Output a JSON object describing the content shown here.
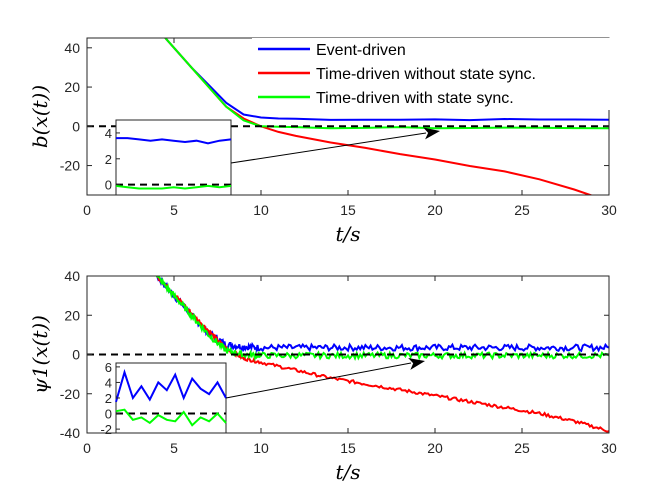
{
  "chart_data": [
    {
      "type": "line",
      "ylabel": "b(x(t))",
      "xlabel": "t/s",
      "xlim": [
        0,
        30
      ],
      "ylim": [
        -35,
        45
      ],
      "xticks": [
        0,
        5,
        10,
        15,
        20,
        25,
        30
      ],
      "yticks": [
        -20,
        0,
        20,
        40
      ],
      "grid": false,
      "legend": {
        "placement": "top-center",
        "entries": [
          "Event-driven",
          "Time-driven without state sync.",
          "Time-driven with state sync."
        ]
      },
      "series": [
        {
          "name": "Event-driven",
          "color": "#0000ff",
          "x": [
            4.5,
            5,
            6,
            7,
            8,
            9,
            10,
            11,
            12,
            14,
            16,
            18,
            20,
            22,
            24,
            26,
            28,
            30
          ],
          "y": [
            45,
            40,
            30,
            21,
            12,
            6,
            4.5,
            4,
            3.8,
            3.5,
            3.5,
            3.4,
            3.5,
            3.4,
            3.5,
            3.4,
            3.5,
            3.5
          ]
        },
        {
          "name": "Time-driven without state sync.",
          "color": "#ff0000",
          "x": [
            4.5,
            5,
            6,
            7,
            8,
            9,
            10,
            11,
            12,
            14,
            16,
            18,
            20,
            22,
            24,
            26,
            28,
            29
          ],
          "y": [
            45,
            40,
            30,
            20,
            10,
            4,
            0,
            -3,
            -5,
            -8,
            -11,
            -14,
            -17,
            -20,
            -23,
            -27,
            -32,
            -35
          ]
        },
        {
          "name": "Time-driven with state sync.",
          "color": "#00ff00",
          "x": [
            4.5,
            5,
            6,
            7,
            8,
            9,
            10,
            11,
            12,
            14,
            16,
            18,
            20,
            22,
            24,
            26,
            28,
            30
          ],
          "y": [
            45,
            40,
            30,
            20,
            10,
            3,
            0,
            -0.5,
            -0.7,
            -0.8,
            -0.8,
            -0.7,
            -0.8,
            -0.8,
            -0.7,
            -0.8,
            -0.8,
            -0.8
          ]
        },
        {
          "name": "",
          "color": "#000000",
          "dashed": true,
          "x": [
            0,
            30
          ],
          "y": [
            0,
            0
          ]
        }
      ],
      "inset": {
        "yticks": [
          0,
          2,
          4
        ],
        "ylim": [
          -0.8,
          5
        ],
        "blue": [
          3.6,
          3.6,
          3.5,
          3.4,
          3.5,
          3.4,
          3.3,
          3.4,
          3.2,
          3.4,
          3.5
        ],
        "green": [
          -0.1,
          -0.2,
          -0.3,
          -0.3,
          -0.3,
          -0.2,
          -0.3,
          -0.2,
          -0.1,
          -0.2,
          -0.1
        ],
        "zero": 0
      }
    },
    {
      "type": "line",
      "ylabel": "ψ1(x(t))",
      "xlabel": "t/s",
      "xlim": [
        0,
        30
      ],
      "ylim": [
        -40,
        40
      ],
      "xticks": [
        0,
        5,
        10,
        15,
        20,
        25,
        30
      ],
      "yticks": [
        -40,
        -20,
        0,
        20,
        40
      ],
      "grid": false,
      "series": [
        {
          "name": "Event-driven",
          "color": "#0000ff",
          "x": [
            4,
            5,
            6,
            7,
            8,
            9,
            10,
            12,
            14,
            16,
            18,
            20,
            22,
            24,
            26,
            28,
            30
          ],
          "y": [
            40,
            30,
            20,
            11,
            5,
            4,
            3.5,
            3.5,
            3.5,
            3.5,
            3.5,
            3.5,
            3.5,
            3.5,
            3.5,
            3.5,
            3.5
          ],
          "noise": 1.6
        },
        {
          "name": "Time-driven without state sync.",
          "color": "#ff0000",
          "x": [
            4,
            5,
            6,
            7,
            8,
            9,
            10,
            12,
            14,
            16,
            18,
            20,
            22,
            24,
            26,
            28,
            30
          ],
          "y": [
            40,
            31,
            21,
            12,
            3,
            -2,
            -4,
            -8,
            -12,
            -15,
            -18,
            -21,
            -24,
            -27,
            -30,
            -34,
            -39
          ],
          "noise": 0.8
        },
        {
          "name": "Time-driven with state sync.",
          "color": "#00ff00",
          "x": [
            4,
            5,
            6,
            7,
            8,
            9,
            10,
            12,
            14,
            16,
            18,
            20,
            22,
            24,
            26,
            28,
            30
          ],
          "y": [
            40,
            30,
            20,
            10,
            2,
            0,
            -0.5,
            -0.5,
            -0.5,
            -0.5,
            -0.5,
            -0.5,
            -0.5,
            -0.5,
            -0.5,
            -0.5,
            -0.5
          ],
          "noise": 1.5
        },
        {
          "name": "",
          "color": "#000000",
          "dashed": true,
          "x": [
            0,
            30
          ],
          "y": [
            0,
            0
          ]
        }
      ],
      "inset": {
        "yticks": [
          -2,
          0,
          2,
          4,
          6
        ],
        "ylim": [
          -2.5,
          6.5
        ],
        "blue": [
          1.5,
          5.3,
          2.0,
          3.5,
          1.8,
          4.0,
          3.0,
          5.0,
          2.0,
          4.5,
          3.2,
          2.5,
          4.0,
          2.0
        ],
        "green": [
          0.3,
          0.5,
          -0.8,
          -0.5,
          -1.2,
          -0.2,
          -0.8,
          -1.0,
          0.2,
          -1.5,
          -0.5,
          -1.0,
          0.0,
          -1.2
        ],
        "zero": 0
      }
    }
  ]
}
